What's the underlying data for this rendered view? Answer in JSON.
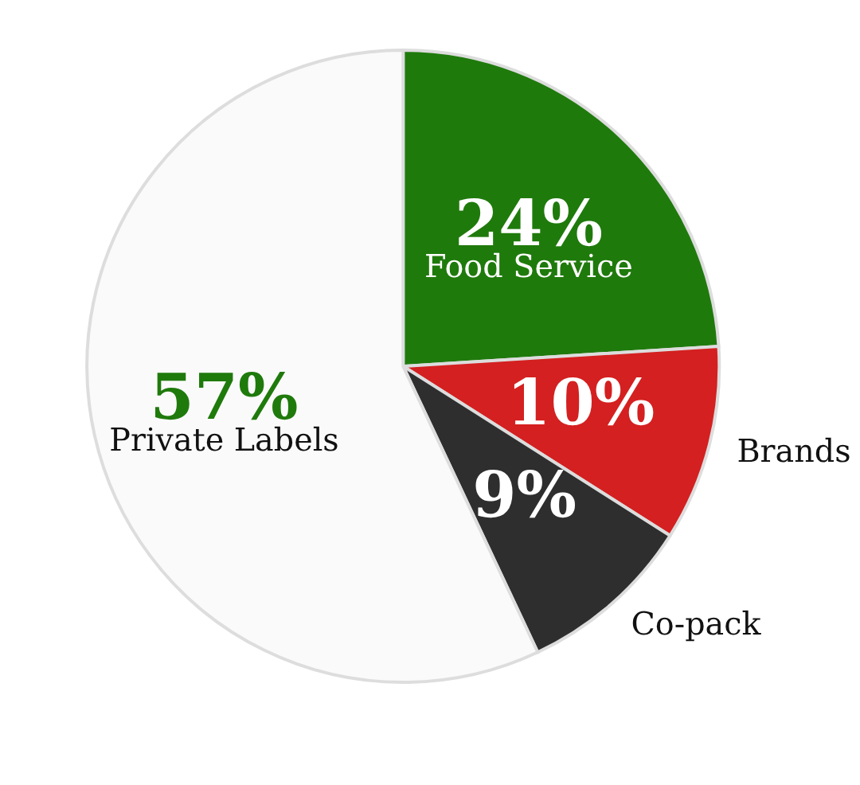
{
  "chart_data": {
    "type": "pie",
    "categories": [
      "Food Service",
      "Brands",
      "Co-pack",
      "Private Labels"
    ],
    "values": [
      24,
      10,
      9,
      57
    ],
    "value_labels": [
      "24%",
      "10%",
      "9%",
      "57%"
    ],
    "colors": [
      "#1f7a0c",
      "#d42020",
      "#2e2e2e",
      "#fafafa"
    ],
    "legend": false
  }
}
